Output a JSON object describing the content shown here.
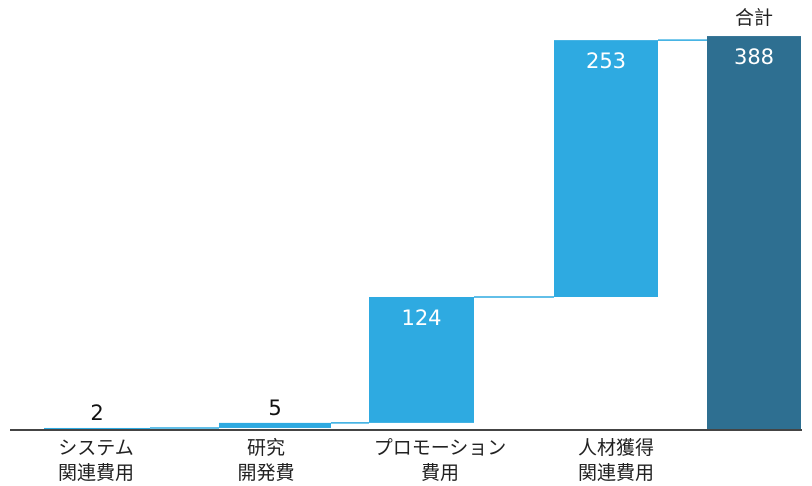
{
  "chart_data": {
    "type": "bar",
    "subtype": "waterfall",
    "categories": [
      [
        "システム",
        "関連費用"
      ],
      [
        "研究",
        "開発費"
      ],
      [
        "プロモーション",
        "費用"
      ],
      [
        "人材獲得",
        "関連費用"
      ],
      [
        "合計"
      ]
    ],
    "values": [
      2,
      5,
      124,
      253,
      388
    ],
    "value_labels": [
      "2",
      "5",
      "124",
      "253",
      "388"
    ],
    "ylim": [
      0,
      392
    ],
    "grid": false,
    "legend": "none",
    "colors": {
      "increment": "#2eaae1",
      "total": "#2e6f91",
      "connector": "#2eaae1",
      "axis": "#444444"
    }
  }
}
